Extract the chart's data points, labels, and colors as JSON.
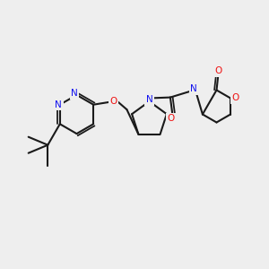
{
  "bg_color": "#eeeeee",
  "figsize": [
    3.0,
    3.0
  ],
  "dpi": 100,
  "bond_color": "#1a1a1a",
  "bond_lw": 1.5,
  "atom_colors": {
    "N": "#1010ee",
    "O": "#ee1010",
    "C": "#1a1a1a"
  },
  "font_size": 7.5,
  "font_size_small": 6.5
}
